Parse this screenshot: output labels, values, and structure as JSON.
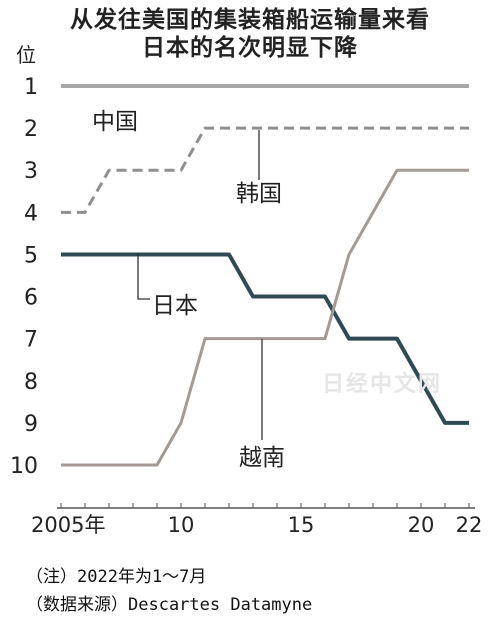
{
  "title": "从发往美国的集装箱船运输量来看",
  "subtitle": "日本的名次明显下降",
  "watermark": "日经中文网",
  "notes": [
    "（注）2022年为1～7月",
    "（数据来源）Descartes Datamyne"
  ],
  "colors": {
    "china": "#a7a7a7",
    "korea": "#8f8f8f",
    "japan": "#2f4a52",
    "vietnam": "#a39a95",
    "axis": "#555555"
  },
  "chart_data": {
    "type": "line",
    "title": "从发往美国的集装箱船运输量来看 日本的名次明显下降",
    "ylabel": "位",
    "y_inverted": true,
    "ylim": [
      1,
      10
    ],
    "yticks": [
      "1",
      "2",
      "3",
      "4",
      "5",
      "6",
      "7",
      "8",
      "9",
      "10"
    ],
    "xlim": [
      2005,
      2022
    ],
    "xticks": [
      {
        "v": 2005,
        "label": "2005年"
      },
      {
        "v": 2010,
        "label": "10"
      },
      {
        "v": 2015,
        "label": "15"
      },
      {
        "v": 2020,
        "label": "20"
      },
      {
        "v": 2022,
        "label": "22"
      }
    ],
    "series": [
      {
        "name": "中国",
        "key": "china",
        "style": "solid",
        "points": [
          [
            2005,
            1
          ],
          [
            2022,
            1
          ]
        ]
      },
      {
        "name": "韩国",
        "key": "korea",
        "style": "dashed",
        "points": [
          [
            2005,
            4
          ],
          [
            2006,
            4
          ],
          [
            2007,
            3
          ],
          [
            2010,
            3
          ],
          [
            2011,
            2
          ],
          [
            2022,
            2
          ]
        ]
      },
      {
        "name": "日本",
        "key": "japan",
        "style": "solid",
        "points": [
          [
            2005,
            5
          ],
          [
            2012,
            5
          ],
          [
            2013,
            6
          ],
          [
            2016,
            6
          ],
          [
            2017,
            7
          ],
          [
            2019,
            7
          ],
          [
            2021,
            9
          ],
          [
            2022,
            9
          ]
        ]
      },
      {
        "name": "越南",
        "key": "vietnam",
        "style": "solid",
        "points": [
          [
            2005,
            10
          ],
          [
            2009,
            10
          ],
          [
            2010,
            9
          ],
          [
            2011,
            7
          ],
          [
            2016,
            7
          ],
          [
            2017,
            5
          ],
          [
            2019,
            3
          ],
          [
            2022,
            3
          ]
        ]
      }
    ]
  }
}
